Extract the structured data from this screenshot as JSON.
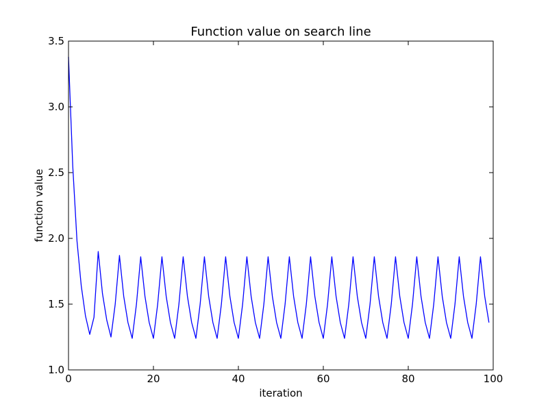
{
  "chart_data": {
    "type": "line",
    "title": "Function value on search line",
    "xlabel": "iteration",
    "ylabel": "function value",
    "xlim": [
      0,
      100
    ],
    "ylim": [
      1.0,
      3.5
    ],
    "xticks": [
      0,
      20,
      40,
      60,
      80,
      100
    ],
    "yticks": [
      1.0,
      1.5,
      2.0,
      2.5,
      3.0,
      3.5
    ],
    "xtick_labels": [
      "0",
      "20",
      "40",
      "60",
      "80",
      "100"
    ],
    "ytick_labels": [
      "1.0",
      "1.5",
      "2.0",
      "2.5",
      "3.0",
      "3.5"
    ],
    "grid": false,
    "series": [
      {
        "color": "#0000ff",
        "x": [
          0,
          1,
          2,
          3,
          4,
          5,
          6,
          7,
          8,
          9,
          10,
          11,
          12,
          13,
          14,
          15,
          16,
          17,
          18,
          19,
          20,
          21,
          22,
          23,
          24,
          25,
          26,
          27,
          28,
          29,
          30,
          31,
          32,
          33,
          34,
          35,
          36,
          37,
          38,
          39,
          40,
          41,
          42,
          43,
          44,
          45,
          46,
          47,
          48,
          49,
          50,
          51,
          52,
          53,
          54,
          55,
          56,
          57,
          58,
          59,
          60,
          61,
          62,
          63,
          64,
          65,
          66,
          67,
          68,
          69,
          70,
          71,
          72,
          73,
          74,
          75,
          76,
          77,
          78,
          79,
          80,
          81,
          82,
          83,
          84,
          85,
          86,
          87,
          88,
          89,
          90,
          91,
          92,
          93,
          94,
          95,
          96,
          97,
          98,
          99
        ],
        "y": [
          3.38,
          2.55,
          1.98,
          1.64,
          1.41,
          1.27,
          1.4,
          1.9,
          1.58,
          1.38,
          1.25,
          1.5,
          1.87,
          1.56,
          1.36,
          1.24,
          1.5,
          1.86,
          1.56,
          1.36,
          1.24,
          1.5,
          1.86,
          1.56,
          1.36,
          1.24,
          1.5,
          1.86,
          1.56,
          1.36,
          1.24,
          1.5,
          1.86,
          1.56,
          1.36,
          1.24,
          1.5,
          1.86,
          1.56,
          1.36,
          1.24,
          1.5,
          1.86,
          1.56,
          1.36,
          1.24,
          1.5,
          1.86,
          1.56,
          1.36,
          1.24,
          1.5,
          1.86,
          1.56,
          1.36,
          1.24,
          1.5,
          1.86,
          1.56,
          1.36,
          1.24,
          1.5,
          1.86,
          1.56,
          1.36,
          1.24,
          1.5,
          1.86,
          1.56,
          1.36,
          1.24,
          1.5,
          1.86,
          1.56,
          1.36,
          1.24,
          1.5,
          1.86,
          1.56,
          1.36,
          1.24,
          1.5,
          1.86,
          1.56,
          1.36,
          1.24,
          1.5,
          1.86,
          1.56,
          1.36,
          1.24,
          1.5,
          1.86,
          1.56,
          1.36,
          1.24,
          1.5,
          1.86,
          1.56,
          1.36
        ]
      }
    ]
  }
}
